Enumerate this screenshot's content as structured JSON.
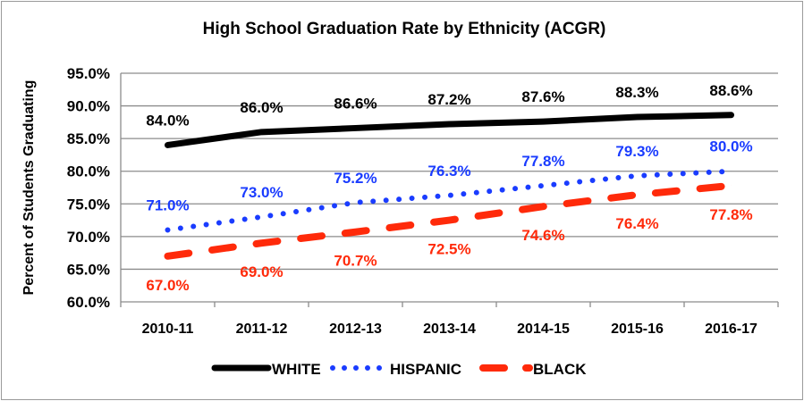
{
  "chart_data": {
    "type": "line",
    "title": "High School Graduation Rate by Ethnicity (ACGR)",
    "xlabel": "",
    "ylabel": "Percent of Students Graduating",
    "ylim": [
      60,
      95
    ],
    "ytick_step": 5,
    "ytick_labels": [
      "60.0%",
      "65.0%",
      "70.0%",
      "75.0%",
      "80.0%",
      "85.0%",
      "90.0%",
      "95.0%"
    ],
    "grid": true,
    "legend_position": "bottom",
    "categories": [
      "2010-11",
      "2011-12",
      "2012-13",
      "2013-14",
      "2014-15",
      "2015-16",
      "2016-17"
    ],
    "series": [
      {
        "name": "WHITE",
        "color": "#000000",
        "style": "solid",
        "label_position": "above",
        "values": [
          84.0,
          86.0,
          86.6,
          87.2,
          87.6,
          88.3,
          88.6
        ],
        "labels": [
          "84.0%",
          "86.0%",
          "86.6%",
          "87.2%",
          "87.6%",
          "88.3%",
          "88.6%"
        ]
      },
      {
        "name": "HISPANIC",
        "color": "#1a3cff",
        "style": "dotted",
        "label_position": "above",
        "values": [
          71.0,
          73.0,
          75.2,
          76.3,
          77.8,
          79.3,
          80.0
        ],
        "labels": [
          "71.0%",
          "73.0%",
          "75.2%",
          "76.3%",
          "77.8%",
          "79.3%",
          "80.0%"
        ]
      },
      {
        "name": "BLACK",
        "color": "#ff2a0a",
        "style": "dashed",
        "label_position": "below",
        "values": [
          67.0,
          69.0,
          70.7,
          72.5,
          74.6,
          76.4,
          77.8
        ],
        "labels": [
          "67.0%",
          "69.0%",
          "70.7%",
          "72.5%",
          "74.6%",
          "76.4%",
          "77.8%"
        ]
      }
    ]
  }
}
